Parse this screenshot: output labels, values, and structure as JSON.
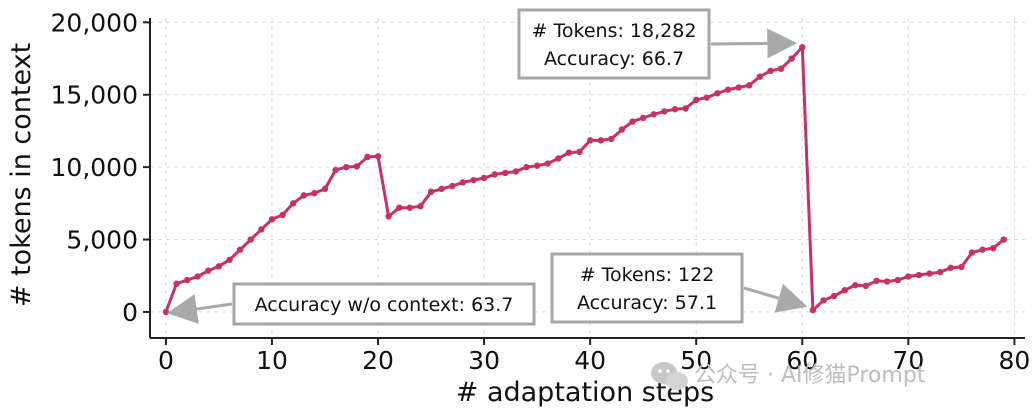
{
  "colors": {
    "series": "#c8325f",
    "arrow": "#a9a9a9",
    "grid": "#dcdcdc",
    "axis": "#222222"
  },
  "chart_data": {
    "type": "line",
    "xlabel": "# adaptation steps",
    "ylabel": "# tokens in context",
    "xlim": [
      -1.5,
      81
    ],
    "ylim": [
      -1800,
      20300
    ],
    "xticks": [
      0,
      10,
      20,
      30,
      40,
      50,
      60,
      70,
      80
    ],
    "xtick_labels": [
      "0",
      "10",
      "20",
      "30",
      "40",
      "50",
      "60",
      "70",
      "80"
    ],
    "yticks": [
      0,
      5000,
      10000,
      15000,
      20000
    ],
    "ytick_labels": [
      "0",
      "5,000",
      "10,000",
      "15,000",
      "20,000"
    ],
    "grid": true,
    "series": [
      {
        "x": [
          0,
          1,
          2,
          3,
          4,
          5,
          6,
          7,
          8,
          9,
          10,
          11,
          12,
          13,
          14,
          15,
          16,
          17,
          18,
          19,
          20,
          21,
          22,
          23,
          24,
          25,
          26,
          27,
          28,
          29,
          30,
          31,
          32,
          33,
          34,
          35,
          36,
          37,
          38,
          39,
          40,
          41,
          42,
          43,
          44,
          45,
          46,
          47,
          48,
          49,
          50,
          51,
          52,
          53,
          54,
          55,
          56,
          57,
          58,
          59,
          60,
          61,
          62,
          63,
          64,
          65,
          66,
          67,
          68,
          69,
          70,
          71,
          72,
          73,
          74,
          75,
          76,
          77,
          78,
          79
        ],
        "y": [
          0,
          1950,
          2200,
          2450,
          2850,
          3150,
          3600,
          4300,
          5000,
          5700,
          6400,
          6700,
          7500,
          8050,
          8200,
          8500,
          9800,
          10000,
          10050,
          10700,
          10750,
          6600,
          7200,
          7200,
          7300,
          8300,
          8500,
          8700,
          8950,
          9100,
          9250,
          9500,
          9600,
          9700,
          10000,
          10100,
          10250,
          10600,
          11000,
          11050,
          11850,
          11850,
          11950,
          12600,
          13150,
          13400,
          13650,
          13850,
          14000,
          14050,
          14650,
          14800,
          15100,
          15350,
          15500,
          15650,
          16250,
          16650,
          16800,
          17500,
          18282,
          122,
          800,
          1100,
          1500,
          1850,
          1800,
          2150,
          2100,
          2200,
          2450,
          2550,
          2650,
          2750,
          3050,
          3100,
          4100,
          4300,
          4400,
          5000
        ]
      }
    ],
    "annotations": [
      {
        "lines": [
          "Accuracy w/o context: 63.7"
        ],
        "target": [
          0,
          0
        ]
      },
      {
        "lines": [
          "# Tokens: 18,282",
          "Accuracy: 66.7"
        ],
        "target": [
          60,
          18282
        ]
      },
      {
        "lines": [
          "# Tokens: 122",
          "Accuracy: 57.1"
        ],
        "target": [
          61,
          122
        ]
      }
    ]
  },
  "watermark": "公众号 · AI修猫Prompt"
}
